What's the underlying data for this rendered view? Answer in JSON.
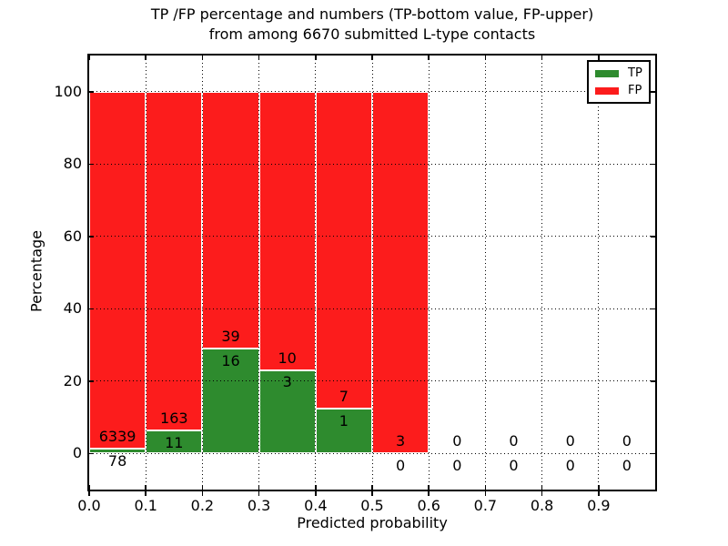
{
  "figure": {
    "title_line1": "TP /FP percentage and numbers (TP-bottom value, FP-upper)",
    "title_line2": "from among 6670 submitted L-type contacts",
    "xlabel": "Predicted probability",
    "ylabel": "Percentage"
  },
  "legend": {
    "position": "upper right",
    "items": [
      {
        "label": "TP",
        "color": "#2e8b2e"
      },
      {
        "label": "FP",
        "color": "#fc1c1c"
      }
    ]
  },
  "chart_data": {
    "type": "bar",
    "stacked": true,
    "normalized": "percent of bin",
    "title": "TP /FP percentage and numbers (TP-bottom value, FP-upper) from among 6670 submitted L-type contacts",
    "xlabel": "Predicted probability",
    "ylabel": "Percentage",
    "total_contacts": 6670,
    "categories": [
      "0.0-0.1",
      "0.1-0.2",
      "0.2-0.3",
      "0.3-0.4",
      "0.4-0.5",
      "0.5-0.6",
      "0.6-0.7",
      "0.7-0.8",
      "0.8-0.9",
      "0.9-1.0"
    ],
    "series": [
      {
        "name": "TP",
        "color": "#2e8b2e",
        "counts": [
          78,
          11,
          16,
          3,
          1,
          0,
          0,
          0,
          0,
          0
        ]
      },
      {
        "name": "FP",
        "color": "#fc1c1c",
        "counts": [
          6339,
          163,
          39,
          10,
          7,
          3,
          0,
          0,
          0,
          0
        ]
      }
    ],
    "tp_percent_of_bin": [
      1.22,
      6.32,
      29.09,
      23.08,
      12.5,
      0.0,
      0,
      0,
      0,
      0
    ],
    "bar_total_percent": [
      100,
      100,
      100,
      100,
      100,
      100,
      0,
      0,
      0,
      0
    ],
    "xlim": [
      0.0,
      1.0
    ],
    "ylim": [
      -10,
      110
    ],
    "xtick_labels": [
      "0.0",
      "0.1",
      "0.2",
      "0.3",
      "0.4",
      "0.5",
      "0.6",
      "0.7",
      "0.8",
      "0.9"
    ],
    "ytick_labels": [
      "0",
      "20",
      "40",
      "60",
      "80",
      "100"
    ],
    "grid": "dotted, drawn above bars",
    "bar_edge_color": "#ffffff",
    "legend_position": "upper right"
  }
}
